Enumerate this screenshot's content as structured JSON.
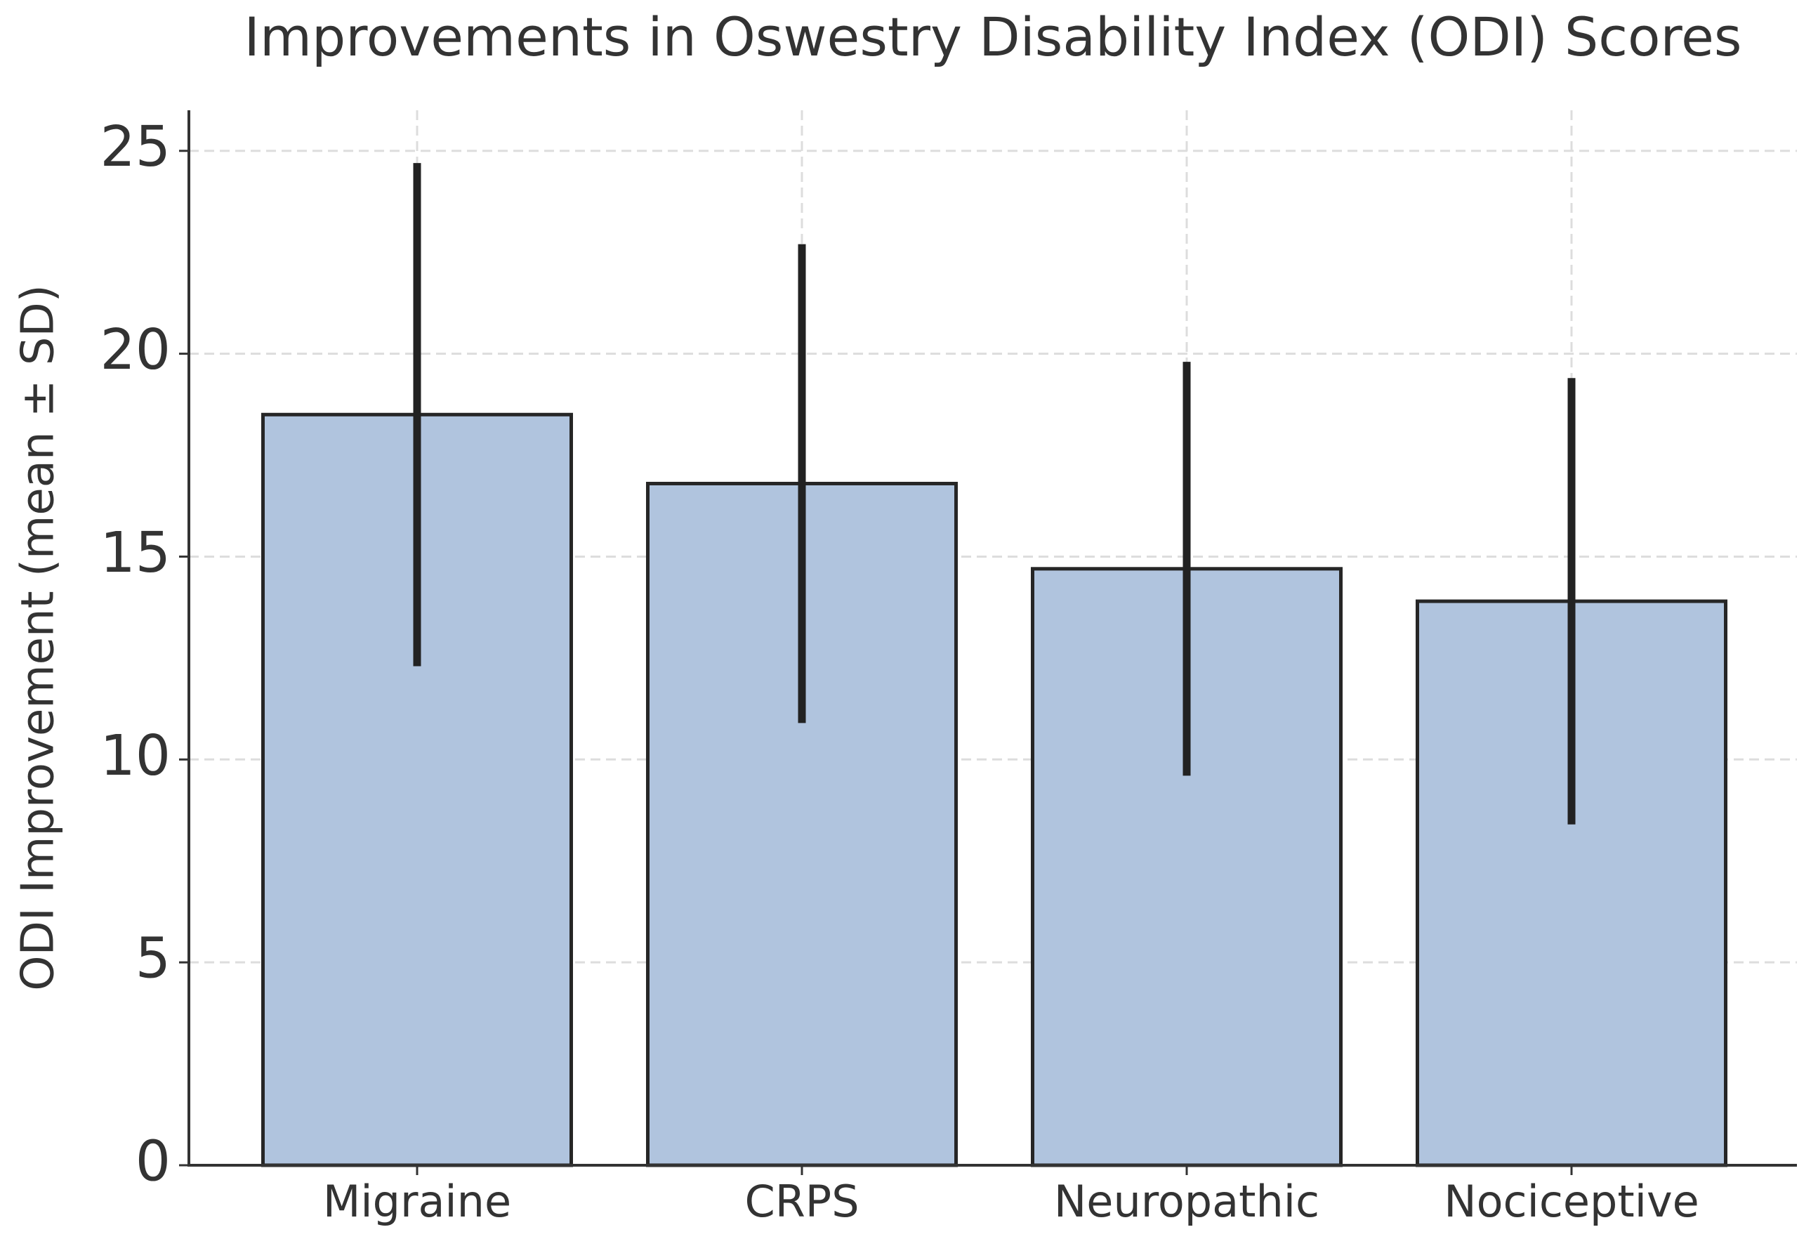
{
  "chart_data": {
    "type": "bar",
    "title": "Improvements in Oswestry Disability Index (ODI) Scores",
    "y_label": "ODI Improvement (mean ± SD)",
    "categories": [
      "Migraine",
      "CRPS",
      "Neuropathic",
      "Nociceptive"
    ],
    "values": [
      18.5,
      16.8,
      14.7,
      13.9
    ],
    "errors": [
      6.2,
      5.9,
      5.1,
      5.5
    ],
    "color": "#b0c4de",
    "ylim": [
      0,
      26
    ],
    "yticks": [
      0,
      5,
      10,
      15,
      20,
      25
    ],
    "grid": true
  }
}
